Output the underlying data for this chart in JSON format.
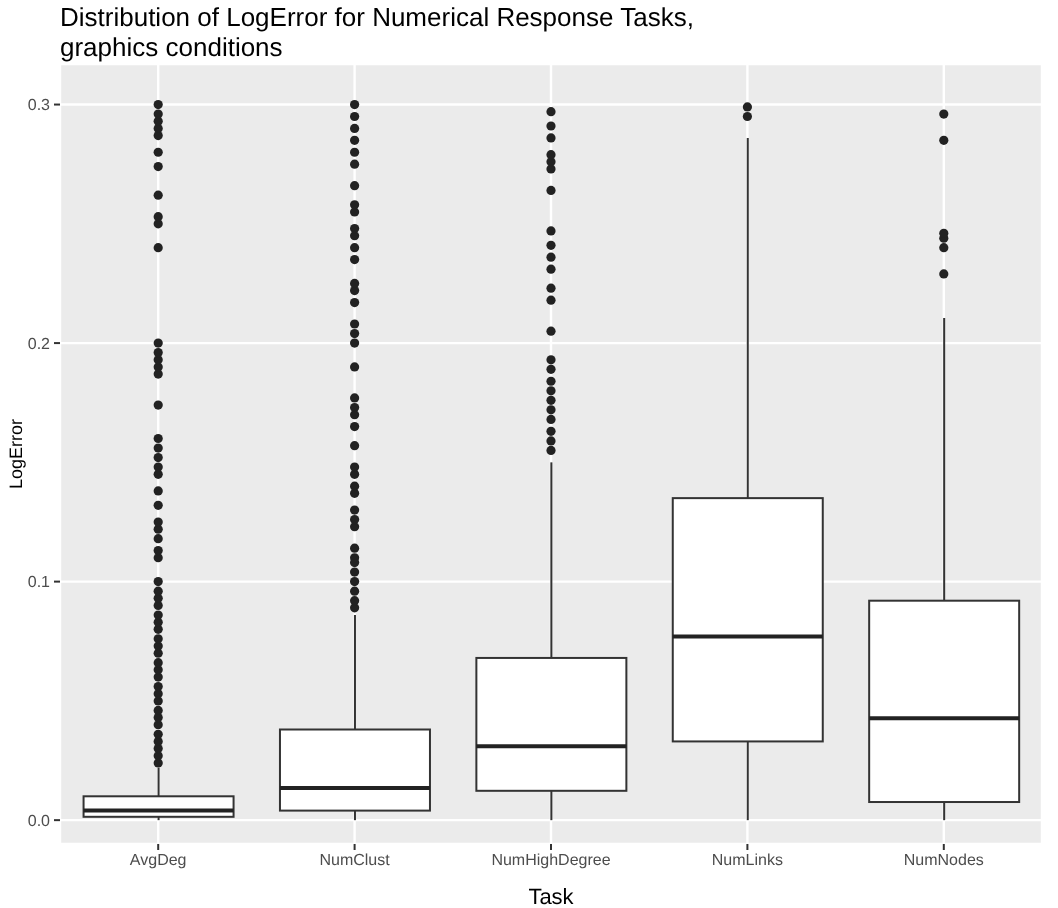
{
  "chart_data": {
    "type": "box",
    "title": "Distribution of LogError for Numerical Response Tasks,\ngraphics conditions",
    "xlabel": "Task",
    "ylabel": "LogError",
    "categories": [
      "AvgDeg",
      "NumClust",
      "NumHighDegree",
      "NumLinks",
      "NumNodes"
    ],
    "boxes": [
      {
        "low": 0,
        "q1": 0.0014,
        "median": 0.004,
        "q3": 0.01,
        "high": 0.022,
        "outliers": [
          0.024,
          0.027,
          0.03,
          0.033,
          0.036,
          0.04,
          0.043,
          0.046,
          0.05,
          0.053,
          0.056,
          0.06,
          0.063,
          0.066,
          0.07,
          0.073,
          0.076,
          0.08,
          0.083,
          0.086,
          0.09,
          0.093,
          0.096,
          0.1,
          0.11,
          0.113,
          0.118,
          0.122,
          0.125,
          0.132,
          0.138,
          0.145,
          0.148,
          0.152,
          0.156,
          0.16,
          0.174,
          0.187,
          0.19,
          0.193,
          0.196,
          0.2,
          0.24,
          0.25,
          0.253,
          0.262,
          0.274,
          0.28,
          0.287,
          0.29,
          0.293,
          0.296,
          0.3
        ]
      },
      {
        "low": 0,
        "q1": 0.004,
        "median": 0.0135,
        "q3": 0.038,
        "high": 0.086,
        "outliers": [
          0.089,
          0.092,
          0.096,
          0.1,
          0.104,
          0.108,
          0.11,
          0.114,
          0.123,
          0.126,
          0.13,
          0.137,
          0.14,
          0.145,
          0.148,
          0.157,
          0.165,
          0.17,
          0.173,
          0.177,
          0.19,
          0.2,
          0.204,
          0.208,
          0.217,
          0.222,
          0.225,
          0.235,
          0.24,
          0.245,
          0.248,
          0.255,
          0.258,
          0.266,
          0.275,
          0.28,
          0.285,
          0.29,
          0.295,
          0.3
        ]
      },
      {
        "low": 0,
        "q1": 0.0123,
        "median": 0.031,
        "q3": 0.068,
        "high": 0.15,
        "outliers": [
          0.155,
          0.159,
          0.163,
          0.168,
          0.172,
          0.176,
          0.18,
          0.184,
          0.189,
          0.193,
          0.205,
          0.218,
          0.223,
          0.231,
          0.236,
          0.241,
          0.247,
          0.264,
          0.273,
          0.276,
          0.279,
          0.286,
          0.291,
          0.297
        ]
      },
      {
        "low": 0,
        "q1": 0.033,
        "median": 0.077,
        "q3": 0.135,
        "high": 0.286,
        "outliers": [
          0.295,
          0.299
        ]
      },
      {
        "low": 0,
        "q1": 0.0076,
        "median": 0.0427,
        "q3": 0.092,
        "high": 0.2105,
        "outliers": [
          0.229,
          0.24,
          0.244,
          0.246,
          0.285,
          0.296
        ]
      }
    ],
    "ylim": [
      -0.01,
      0.317
    ],
    "yticks": [
      {
        "value": 0,
        "label": "0.0"
      },
      0.1,
      0.2,
      0.3
    ],
    "grid": true
  }
}
